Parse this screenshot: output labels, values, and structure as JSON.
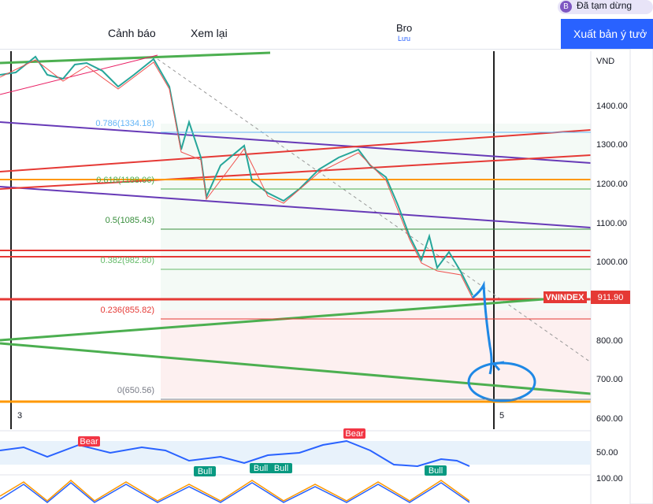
{
  "toolbar": {
    "alert": "Cảnh báo",
    "replay": "Xem lại",
    "layout_name": "Bro",
    "save": "Lưu",
    "publish": "Xuất bản ý tưở",
    "status": "Đã tạm dừng",
    "avatar": "B"
  },
  "chart": {
    "currency": "VND",
    "price_labels": [
      "1400.00",
      "1300.00",
      "1200.00",
      "1100.00",
      "1000.00",
      "800.00",
      "700.00",
      "600.00"
    ],
    "fib_levels": [
      "0.786(1334.18)",
      "0.618(1188.06)",
      "0.5(1085.43)",
      "0.382(982.80)",
      "0.236(855.82)",
      "0(650.56)"
    ],
    "symbol": "VNINDEX",
    "last_price": "911.90",
    "time_labels": [
      "3",
      "5"
    ]
  },
  "indicators": {
    "rsi_level": "50.00",
    "stoch_level": "100.00",
    "signals": [
      "Bear",
      "Bear",
      "Bull",
      "Bull",
      "Bull",
      "Bull"
    ]
  }
}
